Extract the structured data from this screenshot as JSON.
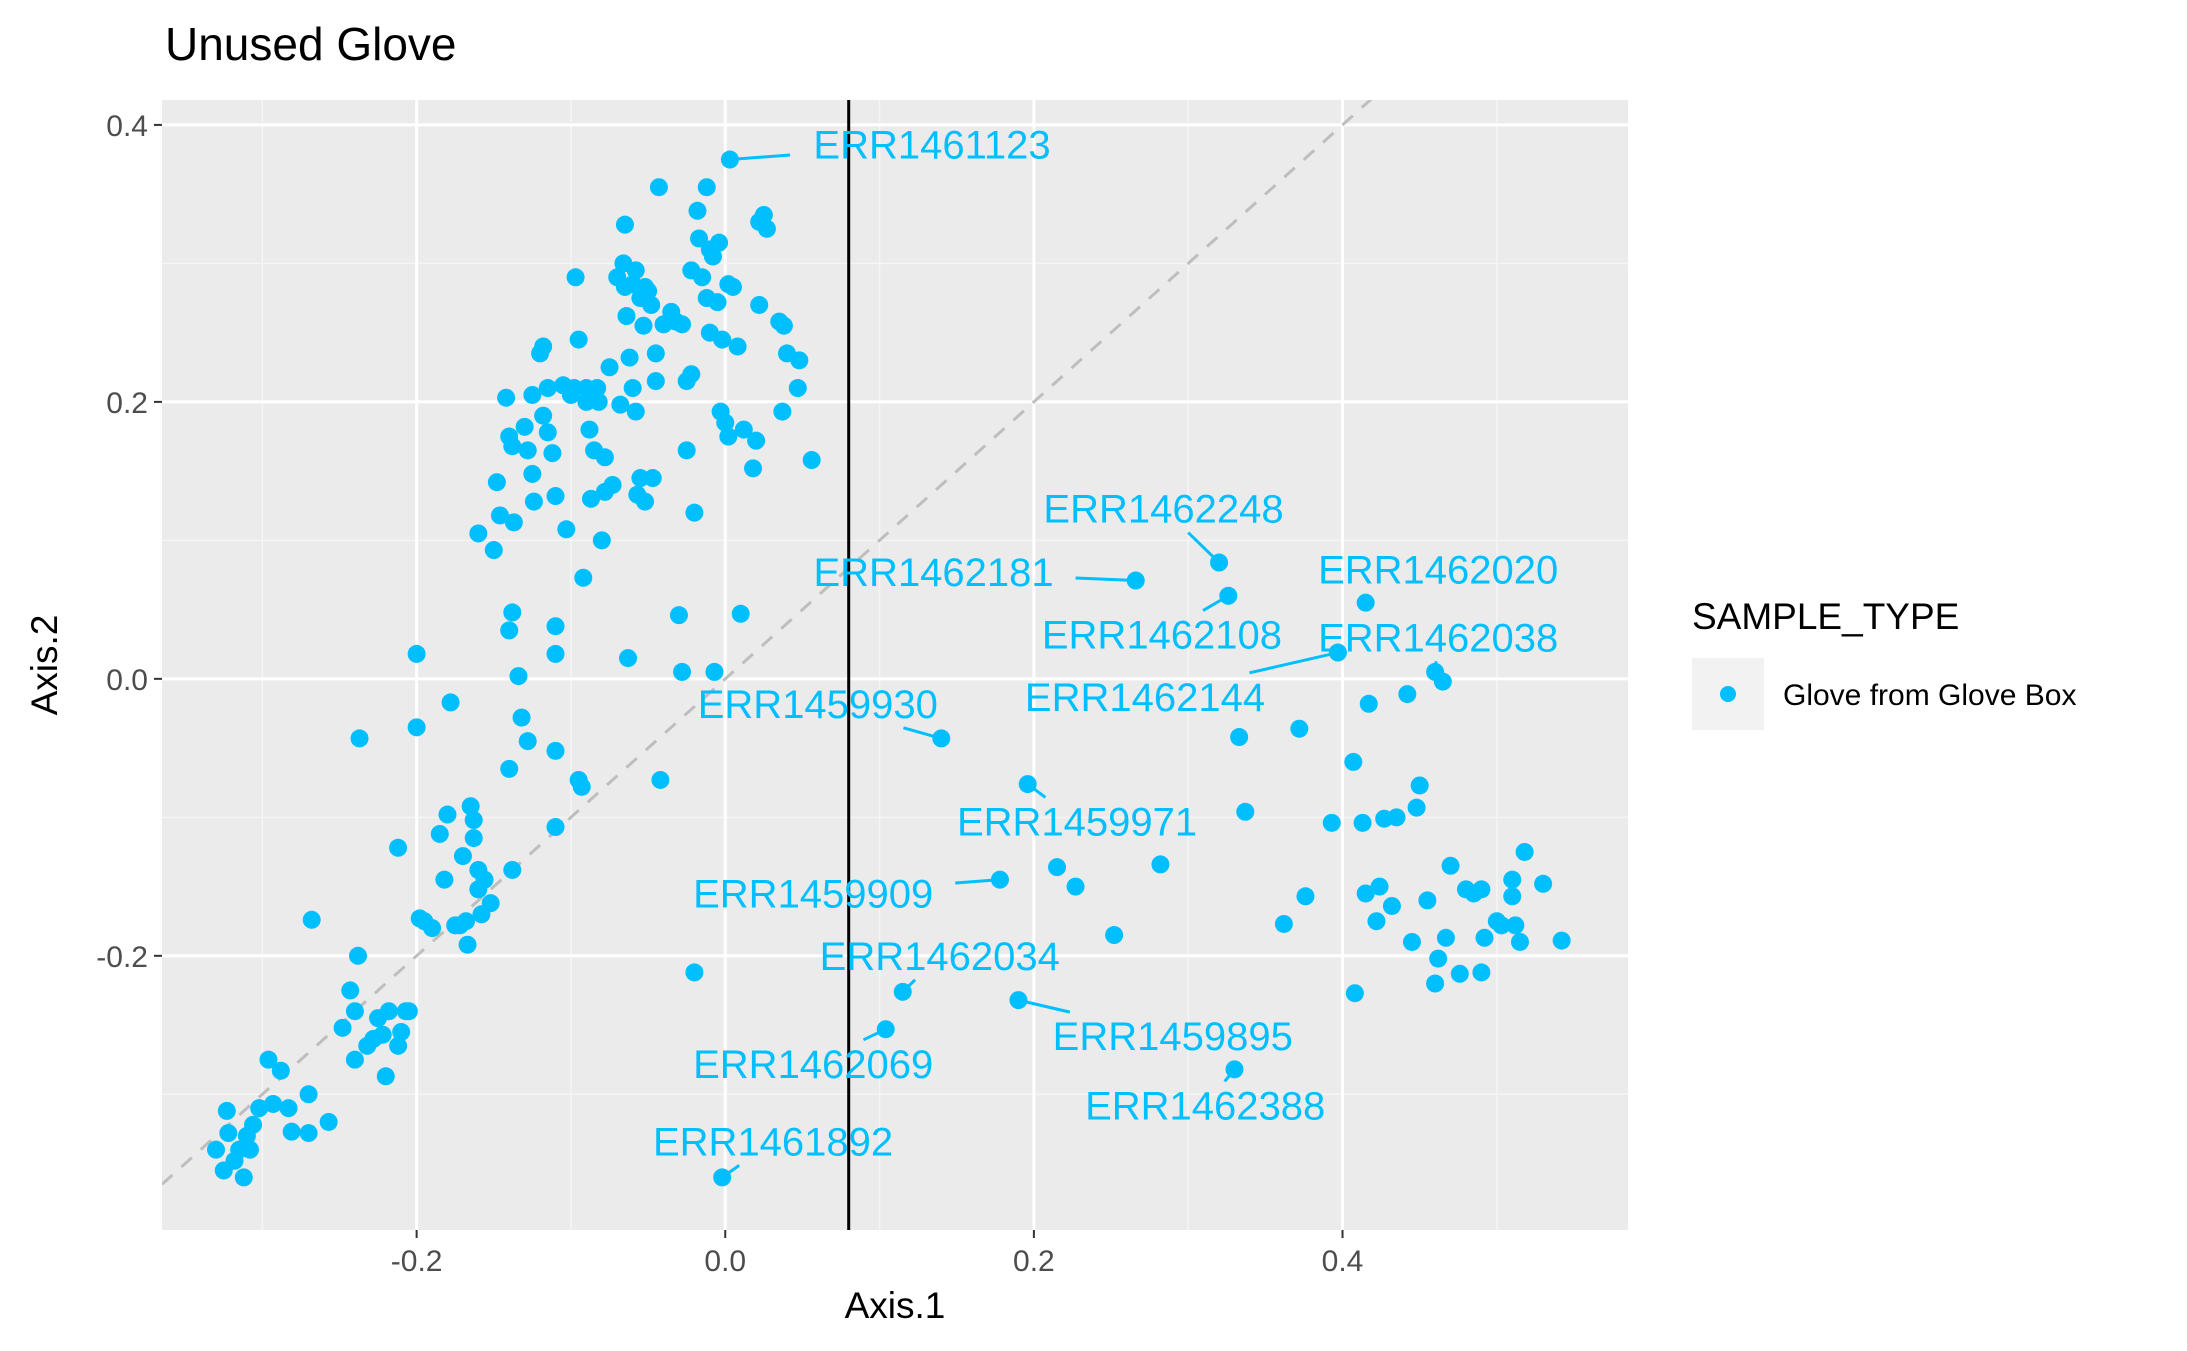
{
  "chart_data": {
    "type": "scatter",
    "title": "Unused Glove",
    "xlabel": "Axis.1",
    "ylabel": "Axis.2",
    "xlim": [
      -0.365,
      0.585
    ],
    "ylim": [
      -0.398,
      0.418
    ],
    "x_ticks": [
      "-0.2",
      "0.0",
      "0.2",
      "0.4"
    ],
    "y_ticks": [
      "-0.2",
      "0.0",
      "0.2",
      "0.4"
    ],
    "grid": true,
    "vline_x": 0.08,
    "reference_line": "dashed diagonal y = x",
    "legend": {
      "title": "SAMPLE_TYPE",
      "placement": "right",
      "items": [
        "Glove from Glove Box"
      ]
    },
    "series": [
      {
        "name": "Glove from Glove Box",
        "color": "#00BFFF",
        "points": [
          [
            -0.33,
            -0.34
          ],
          [
            -0.325,
            -0.355
          ],
          [
            -0.323,
            -0.312
          ],
          [
            -0.322,
            -0.328
          ],
          [
            -0.318,
            -0.348
          ],
          [
            -0.315,
            -0.34
          ],
          [
            -0.312,
            -0.36
          ],
          [
            -0.31,
            -0.33
          ],
          [
            -0.308,
            -0.34
          ],
          [
            -0.306,
            -0.322
          ],
          [
            -0.302,
            -0.31
          ],
          [
            -0.296,
            -0.275
          ],
          [
            -0.293,
            -0.307
          ],
          [
            -0.288,
            -0.283
          ],
          [
            -0.283,
            -0.31
          ],
          [
            -0.281,
            -0.327
          ],
          [
            -0.27,
            -0.3
          ],
          [
            -0.27,
            -0.328
          ],
          [
            -0.268,
            -0.174
          ],
          [
            -0.257,
            -0.32
          ],
          [
            -0.248,
            -0.252
          ],
          [
            -0.243,
            -0.225
          ],
          [
            -0.24,
            -0.24
          ],
          [
            -0.24,
            -0.275
          ],
          [
            -0.238,
            -0.2
          ],
          [
            -0.237,
            -0.043
          ],
          [
            -0.232,
            -0.265
          ],
          [
            -0.228,
            -0.26
          ],
          [
            -0.225,
            -0.245
          ],
          [
            -0.222,
            -0.257
          ],
          [
            -0.22,
            -0.287
          ],
          [
            -0.218,
            -0.24
          ],
          [
            -0.212,
            -0.265
          ],
          [
            -0.21,
            -0.255
          ],
          [
            -0.207,
            -0.24
          ],
          [
            -0.205,
            -0.24
          ],
          [
            -0.212,
            -0.122
          ],
          [
            -0.198,
            -0.173
          ],
          [
            -0.195,
            -0.175
          ],
          [
            -0.2,
            0.018
          ],
          [
            -0.2,
            -0.035
          ],
          [
            -0.19,
            -0.18
          ],
          [
            -0.185,
            -0.112
          ],
          [
            -0.182,
            -0.145
          ],
          [
            -0.18,
            -0.098
          ],
          [
            -0.178,
            -0.017
          ],
          [
            -0.175,
            -0.178
          ],
          [
            -0.172,
            -0.178
          ],
          [
            -0.17,
            -0.128
          ],
          [
            -0.168,
            -0.175
          ],
          [
            -0.167,
            -0.192
          ],
          [
            -0.165,
            -0.092
          ],
          [
            -0.163,
            -0.102
          ],
          [
            -0.163,
            -0.115
          ],
          [
            -0.16,
            -0.138
          ],
          [
            -0.16,
            -0.152
          ],
          [
            -0.158,
            -0.17
          ],
          [
            -0.156,
            -0.145
          ],
          [
            -0.152,
            -0.162
          ],
          [
            -0.16,
            0.105
          ],
          [
            -0.15,
            0.093
          ],
          [
            -0.148,
            0.142
          ],
          [
            -0.146,
            0.118
          ],
          [
            -0.142,
            0.203
          ],
          [
            -0.14,
            0.175
          ],
          [
            -0.138,
            0.168
          ],
          [
            -0.137,
            0.113
          ],
          [
            -0.138,
            0.048
          ],
          [
            -0.14,
            0.035
          ],
          [
            -0.14,
            -0.065
          ],
          [
            -0.138,
            -0.138
          ],
          [
            -0.134,
            0.002
          ],
          [
            -0.132,
            -0.028
          ],
          [
            -0.13,
            0.182
          ],
          [
            -0.128,
            0.165
          ],
          [
            -0.128,
            -0.045
          ],
          [
            -0.125,
            0.148
          ],
          [
            -0.125,
            0.205
          ],
          [
            -0.124,
            0.128
          ],
          [
            -0.12,
            0.235
          ],
          [
            -0.118,
            0.24
          ],
          [
            -0.118,
            0.19
          ],
          [
            -0.115,
            0.21
          ],
          [
            -0.115,
            0.178
          ],
          [
            -0.112,
            0.163
          ],
          [
            -0.11,
            0.132
          ],
          [
            -0.11,
            0.038
          ],
          [
            -0.11,
            0.018
          ],
          [
            -0.11,
            -0.052
          ],
          [
            -0.11,
            -0.107
          ],
          [
            -0.105,
            0.212
          ],
          [
            -0.103,
            0.108
          ],
          [
            -0.1,
            0.205
          ],
          [
            -0.098,
            0.21
          ],
          [
            -0.097,
            0.29
          ],
          [
            -0.095,
            0.245
          ],
          [
            -0.095,
            -0.073
          ],
          [
            -0.093,
            -0.078
          ],
          [
            -0.092,
            0.073
          ],
          [
            -0.09,
            0.21
          ],
          [
            -0.09,
            0.2
          ],
          [
            -0.088,
            0.18
          ],
          [
            -0.087,
            0.13
          ],
          [
            -0.085,
            0.165
          ],
          [
            -0.083,
            0.21
          ],
          [
            -0.082,
            0.2
          ],
          [
            -0.08,
            0.1
          ],
          [
            -0.078,
            0.135
          ],
          [
            -0.078,
            0.16
          ],
          [
            -0.075,
            0.225
          ],
          [
            -0.073,
            0.14
          ],
          [
            -0.07,
            0.29
          ],
          [
            -0.068,
            0.198
          ],
          [
            -0.066,
            0.3
          ],
          [
            -0.065,
            0.328
          ],
          [
            -0.065,
            0.283
          ],
          [
            -0.064,
            0.262
          ],
          [
            -0.063,
            0.015
          ],
          [
            -0.062,
            0.232
          ],
          [
            -0.06,
            0.285
          ],
          [
            -0.06,
            0.21
          ],
          [
            -0.058,
            0.295
          ],
          [
            -0.058,
            0.193
          ],
          [
            -0.057,
            0.133
          ],
          [
            -0.055,
            0.275
          ],
          [
            -0.055,
            0.145
          ],
          [
            -0.053,
            0.255
          ],
          [
            -0.052,
            0.283
          ],
          [
            -0.052,
            0.128
          ],
          [
            -0.05,
            0.28
          ],
          [
            -0.048,
            0.27
          ],
          [
            -0.047,
            0.145
          ],
          [
            -0.045,
            0.235
          ],
          [
            -0.045,
            0.215
          ],
          [
            -0.043,
            0.355
          ],
          [
            -0.042,
            -0.073
          ],
          [
            -0.04,
            0.256
          ],
          [
            -0.035,
            0.265
          ],
          [
            -0.032,
            0.258
          ],
          [
            -0.03,
            0.046
          ],
          [
            -0.028,
            0.256
          ],
          [
            -0.028,
            0.005
          ],
          [
            -0.025,
            0.165
          ],
          [
            -0.025,
            0.215
          ],
          [
            -0.022,
            0.22
          ],
          [
            -0.022,
            0.295
          ],
          [
            -0.02,
            0.12
          ],
          [
            -0.02,
            -0.212
          ],
          [
            -0.018,
            0.338
          ],
          [
            -0.017,
            0.318
          ],
          [
            -0.015,
            0.29
          ],
          [
            -0.012,
            0.355
          ],
          [
            -0.012,
            0.275
          ],
          [
            -0.01,
            0.31
          ],
          [
            -0.01,
            0.25
          ],
          [
            -0.008,
            0.305
          ],
          [
            -0.007,
            0.005
          ],
          [
            -0.005,
            0.272
          ],
          [
            -0.004,
            0.315
          ],
          [
            -0.003,
            0.193
          ],
          [
            -0.002,
            0.245
          ],
          [
            0,
            0.185
          ],
          [
            0.002,
            0.285
          ],
          [
            0.002,
            0.175
          ],
          [
            0.003,
            0.375
          ],
          [
            0.005,
            0.283
          ],
          [
            0.008,
            0.24
          ],
          [
            0.01,
            0.047
          ],
          [
            0.012,
            0.18
          ],
          [
            0.018,
            0.152
          ],
          [
            0.02,
            0.172
          ],
          [
            0.022,
            0.33
          ],
          [
            0.022,
            0.27
          ],
          [
            0.025,
            0.335
          ],
          [
            0.027,
            0.325
          ],
          [
            0.035,
            0.258
          ],
          [
            0.037,
            0.193
          ],
          [
            0.038,
            0.255
          ],
          [
            0.04,
            0.235
          ],
          [
            0.047,
            0.21
          ],
          [
            0.048,
            0.23
          ],
          [
            0.056,
            0.158
          ],
          [
            -0.002,
            -0.36
          ],
          [
            0.104,
            -0.253
          ],
          [
            0.115,
            -0.226
          ],
          [
            0.14,
            -0.043
          ],
          [
            0.178,
            -0.145
          ],
          [
            0.19,
            -0.232
          ],
          [
            0.196,
            -0.076
          ],
          [
            0.215,
            -0.136
          ],
          [
            0.227,
            -0.15
          ],
          [
            0.252,
            -0.185
          ],
          [
            0.266,
            0.071
          ],
          [
            0.282,
            -0.134
          ],
          [
            0.32,
            0.084
          ],
          [
            0.326,
            0.06
          ],
          [
            0.33,
            -0.282
          ],
          [
            0.333,
            -0.042
          ],
          [
            0.337,
            -0.096
          ],
          [
            0.362,
            -0.177
          ],
          [
            0.372,
            -0.036
          ],
          [
            0.376,
            -0.157
          ],
          [
            0.393,
            -0.104
          ],
          [
            0.397,
            0.019
          ],
          [
            0.407,
            -0.06
          ],
          [
            0.408,
            -0.227
          ],
          [
            0.413,
            -0.104
          ],
          [
            0.415,
            0.055
          ],
          [
            0.415,
            -0.155
          ],
          [
            0.417,
            -0.018
          ],
          [
            0.422,
            -0.175
          ],
          [
            0.424,
            -0.15
          ],
          [
            0.427,
            -0.101
          ],
          [
            0.432,
            -0.164
          ],
          [
            0.435,
            -0.1
          ],
          [
            0.442,
            -0.011
          ],
          [
            0.445,
            -0.19
          ],
          [
            0.448,
            -0.093
          ],
          [
            0.45,
            -0.077
          ],
          [
            0.455,
            -0.16
          ],
          [
            0.46,
            0.005
          ],
          [
            0.46,
            -0.22
          ],
          [
            0.462,
            -0.202
          ],
          [
            0.465,
            -0.002
          ],
          [
            0.467,
            -0.187
          ],
          [
            0.47,
            -0.135
          ],
          [
            0.476,
            -0.213
          ],
          [
            0.48,
            -0.152
          ],
          [
            0.485,
            -0.155
          ],
          [
            0.49,
            -0.212
          ],
          [
            0.49,
            -0.152
          ],
          [
            0.492,
            -0.187
          ],
          [
            0.5,
            -0.175
          ],
          [
            0.503,
            -0.178
          ],
          [
            0.51,
            -0.145
          ],
          [
            0.51,
            -0.157
          ],
          [
            0.512,
            -0.178
          ],
          [
            0.515,
            -0.19
          ],
          [
            0.518,
            -0.125
          ],
          [
            0.53,
            -0.148
          ],
          [
            0.542,
            -0.189
          ]
        ],
        "annotations": [
          {
            "label": "ERR1461123",
            "x": 0.003,
            "y": 0.375,
            "label_x": 0.134,
            "label_y": 0.386
          },
          {
            "label": "ERR1462248",
            "x": 0.32,
            "y": 0.084,
            "label_x": 0.284,
            "label_y": 0.123
          },
          {
            "label": "ERR1462181",
            "x": 0.266,
            "y": 0.071,
            "label_x": 0.135,
            "label_y": 0.077
          },
          {
            "label": "ERR1462020",
            "x": 0.415,
            "y": 0.055,
            "label_x": 0.462,
            "label_y": 0.079
          },
          {
            "label": "ERR1462108",
            "x": 0.326,
            "y": 0.06,
            "label_x": 0.283,
            "label_y": 0.032
          },
          {
            "label": "ERR1462038",
            "x": 0.46,
            "y": 0.005,
            "label_x": 0.462,
            "label_y": 0.03
          },
          {
            "label": "ERR1462144",
            "x": 0.397,
            "y": 0.019,
            "label_x": 0.272,
            "label_y": -0.013
          },
          {
            "label": "ERR1459930",
            "x": 0.14,
            "y": -0.043,
            "label_x": 0.06,
            "label_y": -0.018
          },
          {
            "label": "ERR1459971",
            "x": 0.196,
            "y": -0.076,
            "label_x": 0.228,
            "label_y": -0.103
          },
          {
            "label": "ERR1459909",
            "x": 0.178,
            "y": -0.145,
            "label_x": 0.057,
            "label_y": -0.155
          },
          {
            "label": "ERR1462034",
            "x": 0.115,
            "y": -0.226,
            "label_x": 0.139,
            "label_y": -0.2
          },
          {
            "label": "ERR1459895",
            "x": 0.19,
            "y": -0.232,
            "label_x": 0.29,
            "label_y": -0.258
          },
          {
            "label": "ERR1462069",
            "x": 0.104,
            "y": -0.253,
            "label_x": 0.057,
            "label_y": -0.278
          },
          {
            "label": "ERR1462388",
            "x": 0.33,
            "y": -0.282,
            "label_x": 0.311,
            "label_y": -0.308
          },
          {
            "label": "ERR1461892",
            "x": -0.002,
            "y": -0.36,
            "label_x": 0.031,
            "label_y": -0.334
          }
        ]
      }
    ]
  }
}
